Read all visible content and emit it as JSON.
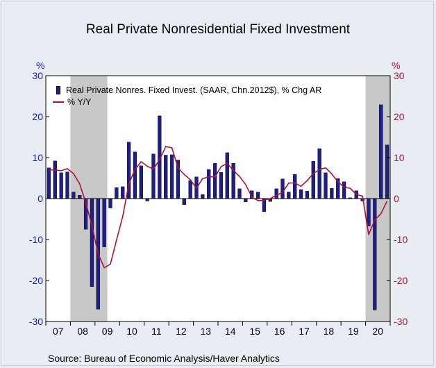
{
  "title": "Real Private Nonresidential Fixed Investment",
  "left_unit": "%",
  "right_unit": "%",
  "source": "Source:  Bureau of Economic Analysis/Haver Analytics",
  "colors": {
    "bars": "#1d1d8c",
    "line": "#b0103a",
    "left_axis": "#1a1aa8",
    "right_axis": "#b0103a",
    "recession_shading": "#c8c8c8",
    "plot_background": "#ffffff",
    "page_background": "#e8edf4"
  },
  "legend": [
    {
      "label": "Real Private Nonres. Fixed Invest. (SAAR, Chn.2012$), % Chg AR",
      "kind": "bar"
    },
    {
      "label": "% Y/Y",
      "kind": "line"
    }
  ],
  "chart_data": {
    "type": "bar",
    "title": "Real Private Nonresidential Fixed Investment",
    "x_axis": {
      "labels": [
        "07",
        "08",
        "09",
        "10",
        "11",
        "12",
        "13",
        "14",
        "15",
        "16",
        "17",
        "18",
        "19",
        "20"
      ],
      "start": "2007Q1",
      "end": "2020Q4"
    },
    "ylim": [
      -30,
      30
    ],
    "y_ticks": [
      30,
      20,
      10,
      0,
      -10,
      -20,
      -30
    ],
    "right_ylim": [
      -30,
      30
    ],
    "right_y_ticks": [
      30,
      20,
      10,
      0,
      -10,
      -20,
      -30
    ],
    "recessions": [
      {
        "start": "2008Q1",
        "end": "2009Q2"
      },
      {
        "start": "2020Q1",
        "end": "2020Q4"
      }
    ],
    "legend_position": "top-left",
    "grid": false,
    "series": [
      {
        "name": "Real Private Nonres. Fixed Invest. (SAAR, Chn.2012$), % Chg AR",
        "type": "bar",
        "axis": "left",
        "values": [
          7.5,
          9.2,
          6.3,
          6.5,
          1.6,
          0.8,
          -7.5,
          -21.5,
          -27.0,
          -11.8,
          -2.3,
          2.7,
          2.9,
          13.8,
          11.4,
          8.0,
          -0.6,
          10.9,
          20.2,
          10.6,
          10.7,
          9.4,
          -1.5,
          4.4,
          5.3,
          1.0,
          7.1,
          8.6,
          6.4,
          11.2,
          8.6,
          2.4,
          -0.8,
          1.9,
          1.6,
          -3.2,
          -0.7,
          2.4,
          4.8,
          1.6,
          5.9,
          2.2,
          1.8,
          9.1,
          12.2,
          6.3,
          2.5,
          4.9,
          4.1,
          0.2,
          1.9,
          -0.6,
          -6.7,
          -27.2,
          22.9,
          13.1
        ]
      },
      {
        "name": "% Y/Y",
        "type": "line",
        "axis": "right",
        "values": [
          7.0,
          7.0,
          6.8,
          7.3,
          6.1,
          3.6,
          -1.0,
          -6.6,
          -13.4,
          -16.9,
          -16.0,
          -10.1,
          -4.4,
          3.6,
          7.1,
          9.0,
          7.9,
          7.2,
          9.5,
          12.7,
          12.4,
          7.5,
          5.9,
          4.6,
          2.5,
          4.9,
          5.3,
          5.3,
          7.8,
          8.6,
          6.9,
          5.4,
          3.4,
          0.4,
          -0.5,
          -0.4,
          0.0,
          0.8,
          1.5,
          3.8,
          3.8,
          3.0,
          4.4,
          6.1,
          7.1,
          7.5,
          6.0,
          4.1,
          2.8,
          2.5,
          1.0,
          0.6,
          -8.8,
          -5.2,
          -3.7,
          -0.6
        ]
      }
    ]
  }
}
